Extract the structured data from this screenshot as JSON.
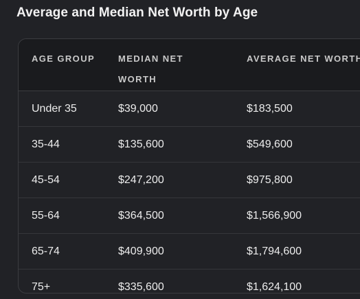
{
  "title": "Average and Median Net Worth by Age",
  "table": {
    "headers": [
      "AGE GROUP",
      "MEDIAN NET WORTH",
      "AVERAGE NET WORTH"
    ],
    "rows": [
      [
        "Under 35",
        "$39,000",
        "$183,500"
      ],
      [
        "35-44",
        "$135,600",
        "$549,600"
      ],
      [
        "45-54",
        "$247,200",
        "$975,800"
      ],
      [
        "55-64",
        "$364,500",
        "$1,566,900"
      ],
      [
        "65-74",
        "$409,900",
        "$1,794,600"
      ],
      [
        "75+",
        "$335,600",
        "$1,624,100"
      ]
    ]
  }
}
